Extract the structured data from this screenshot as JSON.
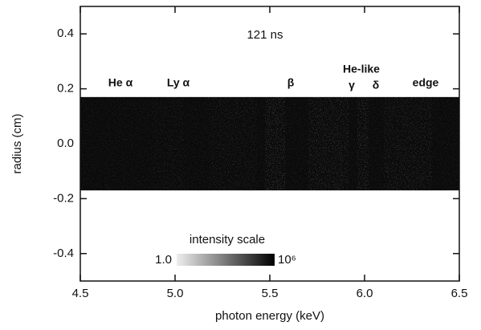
{
  "chart_data": {
    "type": "image",
    "title": "121 ns",
    "x_label": "photon energy (keV)",
    "y_label": "radius (cm)",
    "xlim": [
      4.5,
      6.5
    ],
    "ylim": [
      -0.5,
      0.5
    ],
    "xticks": [
      4.5,
      {
        "value": 5,
        "label": "5.0"
      },
      5.5,
      {
        "value": 6,
        "label": "6.0"
      },
      6.5
    ],
    "yticks": [
      0.4,
      0.2,
      {
        "value": 0,
        "label": "0.0"
      },
      -0.2,
      -0.4
    ],
    "band": [
      -0.17,
      0.17
    ],
    "annotations": [
      "He α",
      "Ly α",
      "β",
      "He-like",
      "γ",
      "δ",
      "edge"
    ],
    "colorbar": {
      "title": "intensity scale",
      "min_label": "1.0",
      "max_label": "10⁶"
    }
  }
}
